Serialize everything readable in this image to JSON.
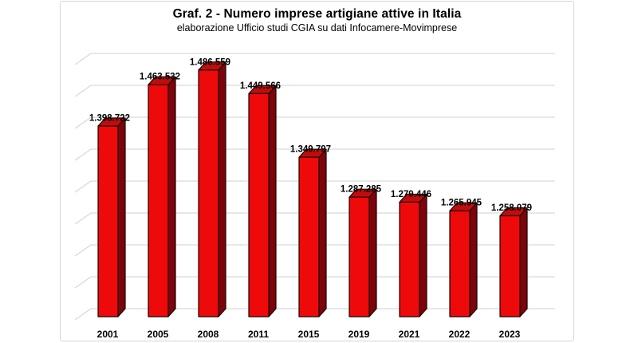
{
  "chart": {
    "title": "Graf. 2 - Numero imprese artigiane attive in Italia",
    "subtitle": "elaborazione Ufficio studi CGIA su dati Infocamere-Movimprese"
  },
  "chart_data": {
    "type": "bar",
    "style": "3d-column",
    "title": "Graf. 2 - Numero imprese artigiane attive in Italia",
    "subtitle": "elaborazione Ufficio studi CGIA su dati Infocamere-Movimprese",
    "categories": [
      "2001",
      "2005",
      "2008",
      "2011",
      "2015",
      "2019",
      "2021",
      "2022",
      "2023"
    ],
    "values": [
      1398722,
      1463532,
      1486559,
      1449566,
      1349797,
      1287285,
      1279446,
      1265945,
      1258079
    ],
    "value_labels": [
      "1.398.722",
      "1.463.532",
      "1.486.559",
      "1.449.566",
      "1.349.797",
      "1.287.285",
      "1.279.446",
      "1.265.945",
      "1.258.079"
    ],
    "xlabel": "",
    "ylabel": "",
    "ylim": [
      1100000,
      1500000
    ],
    "grid_step": 50000,
    "grid": true,
    "legend": false,
    "value_axis_labels_visible": false,
    "colors": {
      "bar_front": "#ee0a0a",
      "bar_top": "#c20c0c",
      "bar_side": "#7c040a",
      "bar_outline": "#190303",
      "gridline": "#d9d9d9",
      "frame_border": "#d5d5d5",
      "text": "#000000",
      "background": "#ffffff"
    }
  }
}
